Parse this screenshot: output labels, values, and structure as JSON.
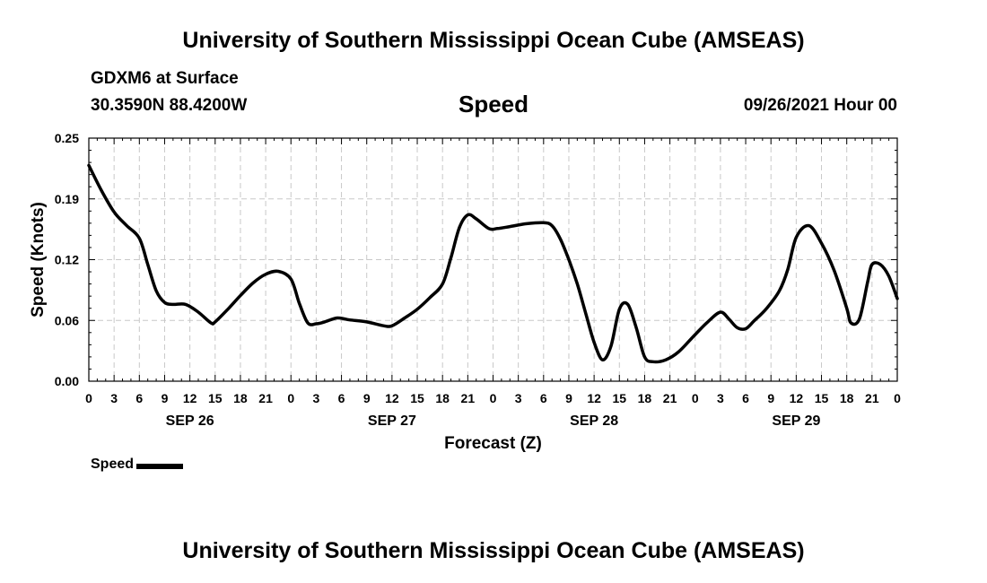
{
  "header": {
    "title": "University of Southern Mississippi Ocean Cube (AMSEAS)",
    "location": "GDXM6 at Surface",
    "coordinates": "30.3590N  88.4200W",
    "run_time": "09/26/2021 Hour 00"
  },
  "footer": {
    "title": "University of Southern Mississippi Ocean Cube (AMSEAS)"
  },
  "legend": {
    "label": "Speed",
    "color": "#000000"
  },
  "chart_data": {
    "type": "line",
    "title": "Speed",
    "xlabel": "Forecast (Z)",
    "ylabel": "Speed (Knots)",
    "xlim": [
      0,
      96
    ],
    "ylim": [
      0,
      0.25
    ],
    "grid": true,
    "legend_position": "bottom-left",
    "y_ticks": [
      {
        "value": 0,
        "label": "0.00"
      },
      {
        "value": 0.0625,
        "label": "0.06"
      },
      {
        "value": 0.125,
        "label": "0.12"
      },
      {
        "value": 0.1875,
        "label": "0.19"
      },
      {
        "value": 0.25,
        "label": "0.25"
      }
    ],
    "x_ticks": [
      {
        "value": 0,
        "label": "0"
      },
      {
        "value": 3,
        "label": "3"
      },
      {
        "value": 6,
        "label": "6"
      },
      {
        "value": 9,
        "label": "9"
      },
      {
        "value": 12,
        "label": "12"
      },
      {
        "value": 15,
        "label": "15"
      },
      {
        "value": 18,
        "label": "18"
      },
      {
        "value": 21,
        "label": "21"
      },
      {
        "value": 24,
        "label": "0"
      },
      {
        "value": 27,
        "label": "3"
      },
      {
        "value": 30,
        "label": "6"
      },
      {
        "value": 33,
        "label": "9"
      },
      {
        "value": 36,
        "label": "12"
      },
      {
        "value": 39,
        "label": "15"
      },
      {
        "value": 42,
        "label": "18"
      },
      {
        "value": 45,
        "label": "21"
      },
      {
        "value": 48,
        "label": "0"
      },
      {
        "value": 51,
        "label": "3"
      },
      {
        "value": 54,
        "label": "6"
      },
      {
        "value": 57,
        "label": "9"
      },
      {
        "value": 60,
        "label": "12"
      },
      {
        "value": 63,
        "label": "15"
      },
      {
        "value": 66,
        "label": "18"
      },
      {
        "value": 69,
        "label": "21"
      },
      {
        "value": 72,
        "label": "0"
      },
      {
        "value": 75,
        "label": "3"
      },
      {
        "value": 78,
        "label": "6"
      },
      {
        "value": 81,
        "label": "9"
      },
      {
        "value": 84,
        "label": "12"
      },
      {
        "value": 87,
        "label": "15"
      },
      {
        "value": 90,
        "label": "18"
      },
      {
        "value": 93,
        "label": "21"
      },
      {
        "value": 96,
        "label": "0"
      }
    ],
    "date_labels": [
      {
        "value": 12,
        "label": "SEP 26"
      },
      {
        "value": 36,
        "label": "SEP 27"
      },
      {
        "value": 60,
        "label": "SEP 28"
      },
      {
        "value": 84,
        "label": "SEP 29"
      }
    ],
    "series": [
      {
        "name": "Speed",
        "x": [
          0,
          1.5,
          3,
          4.5,
          6,
          7,
          8,
          9,
          10,
          11.5,
          13,
          14.5,
          15,
          16.5,
          18,
          19.5,
          21,
          22.5,
          24,
          25,
          26,
          27,
          28,
          29.5,
          31,
          33,
          35,
          36,
          37.5,
          39,
          40.5,
          42,
          43,
          44,
          45,
          46,
          47.5,
          48.5,
          50,
          52,
          54,
          55,
          56,
          57,
          58,
          59,
          60,
          61,
          62,
          63,
          64,
          65,
          66,
          67,
          68.5,
          70,
          72,
          73.5,
          75,
          76,
          77,
          78,
          79,
          80.5,
          82,
          83,
          84,
          85.5,
          87,
          88.5,
          90,
          90.5,
          91.5,
          92.5,
          93,
          94,
          95,
          96
        ],
        "values": [
          0.222,
          0.196,
          0.174,
          0.16,
          0.147,
          0.12,
          0.093,
          0.081,
          0.079,
          0.079,
          0.071,
          0.06,
          0.061,
          0.074,
          0.088,
          0.101,
          0.11,
          0.113,
          0.105,
          0.08,
          0.06,
          0.059,
          0.061,
          0.065,
          0.063,
          0.061,
          0.057,
          0.057,
          0.065,
          0.074,
          0.086,
          0.1,
          0.127,
          0.158,
          0.171,
          0.167,
          0.157,
          0.157,
          0.159,
          0.162,
          0.163,
          0.16,
          0.146,
          0.125,
          0.1,
          0.07,
          0.04,
          0.022,
          0.036,
          0.074,
          0.079,
          0.055,
          0.025,
          0.02,
          0.022,
          0.03,
          0.048,
          0.061,
          0.071,
          0.064,
          0.055,
          0.054,
          0.062,
          0.075,
          0.093,
          0.115,
          0.148,
          0.16,
          0.142,
          0.114,
          0.075,
          0.06,
          0.064,
          0.103,
          0.12,
          0.12,
          0.108,
          0.085
        ]
      }
    ]
  }
}
